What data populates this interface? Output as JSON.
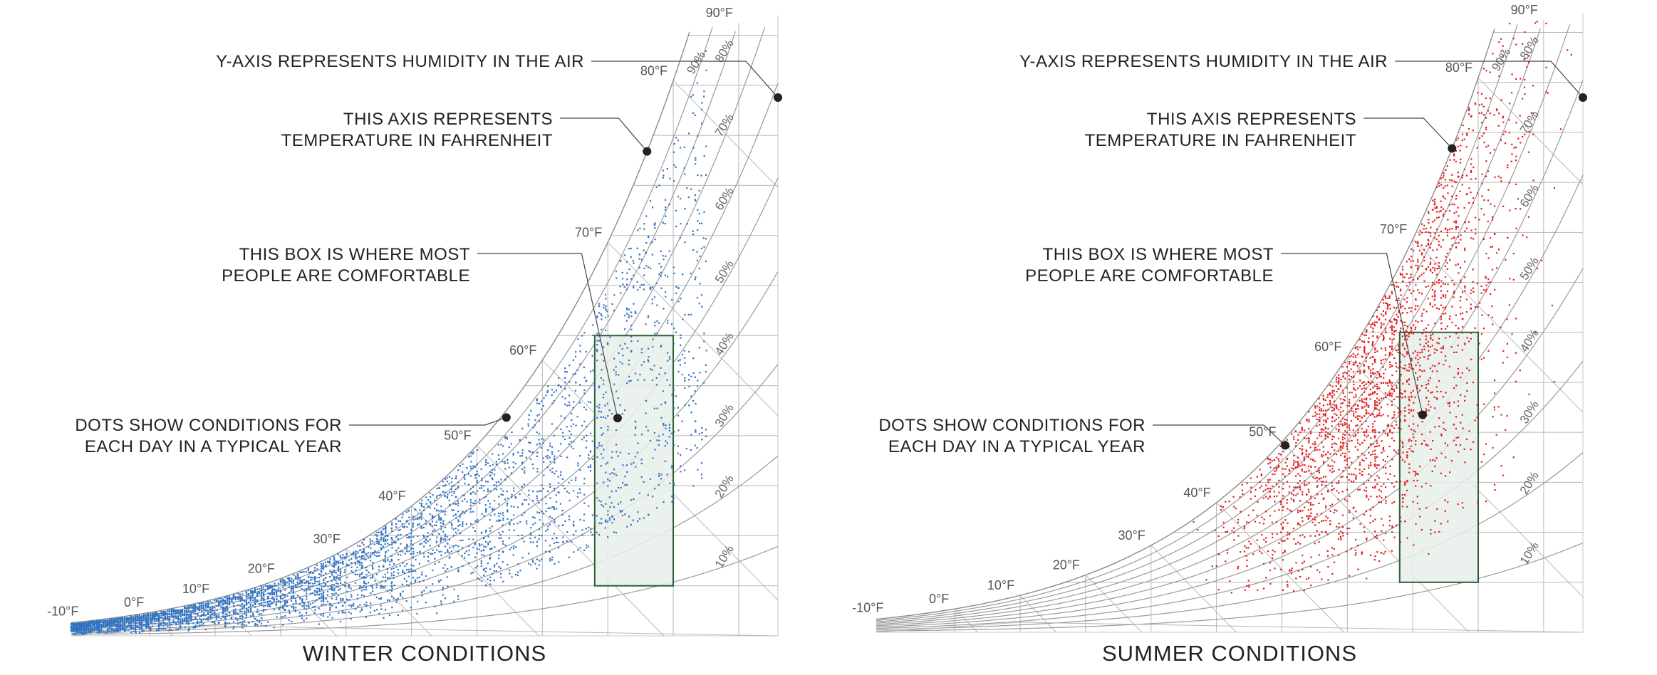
{
  "panels": [
    {
      "id": "winter",
      "title": "WINTER CONDITIONS",
      "dot_color": "#2f73c4",
      "comfort_box_fill": "#e8f0ea",
      "comfort_box_stroke": "#2e5e34"
    },
    {
      "id": "summer",
      "title": "SUMMER CONDITIONS",
      "dot_color": "#e11b1b",
      "comfort_box_fill": "#e8f0ea",
      "comfort_box_stroke": "#2e5e34"
    }
  ],
  "callouts": {
    "humidity_axis": "Y-AXIS REPRESENTS HUMIDITY IN THE AIR",
    "temperature_axis_line1": "THIS AXIS REPRESENTS",
    "temperature_axis_line2": "TEMPERATURE IN FAHRENHEIT",
    "comfort_box_line1": "THIS BOX IS WHERE MOST",
    "comfort_box_line2": "PEOPLE ARE COMFORTABLE",
    "dots_line1": "DOTS SHOW CONDITIONS FOR",
    "dots_line2": "EACH DAY IN A TYPICAL YEAR"
  },
  "chart_data": [
    {
      "type": "scatter",
      "title": "WINTER CONDITIONS",
      "x_axis": "dry-bulb temperature (°F)",
      "y_axis": "humidity ratio",
      "temperature_ticks": [
        "-10°F",
        "0°F",
        "10°F",
        "20°F",
        "30°F",
        "40°F",
        "50°F",
        "60°F",
        "70°F",
        "80°F",
        "90°F"
      ],
      "relative_humidity_curves": [
        "10%",
        "20%",
        "30%",
        "40%",
        "50%",
        "60%",
        "70%",
        "80%",
        "90%"
      ],
      "comfort_zone": {
        "temp_range_f": [
          68,
          80
        ],
        "humidity_ratio_range": [
          0.002,
          0.012
        ]
      },
      "point_cloud": {
        "temp_range_f": [
          -12,
          85
        ],
        "rh_range_pct": [
          15,
          100
        ],
        "approx_points": 4200,
        "bias": "cold"
      }
    },
    {
      "type": "scatter",
      "title": "SUMMER CONDITIONS",
      "x_axis": "dry-bulb temperature (°F)",
      "y_axis": "humidity ratio",
      "temperature_ticks": [
        "-10°F",
        "0°F",
        "10°F",
        "20°F",
        "30°F",
        "40°F",
        "50°F",
        "60°F",
        "70°F",
        "80°F",
        "90°F"
      ],
      "relative_humidity_curves": [
        "10%",
        "20%",
        "30%",
        "40%",
        "50%",
        "60%",
        "70%",
        "80%",
        "90%"
      ],
      "comfort_zone": {
        "temp_range_f": [
          68,
          80
        ],
        "humidity_ratio_range": [
          0.002,
          0.012
        ]
      },
      "point_cloud": {
        "temp_range_f": [
          33,
          98
        ],
        "rh_range_pct": [
          18,
          100
        ],
        "approx_points": 2400,
        "bias": "warm"
      }
    }
  ]
}
